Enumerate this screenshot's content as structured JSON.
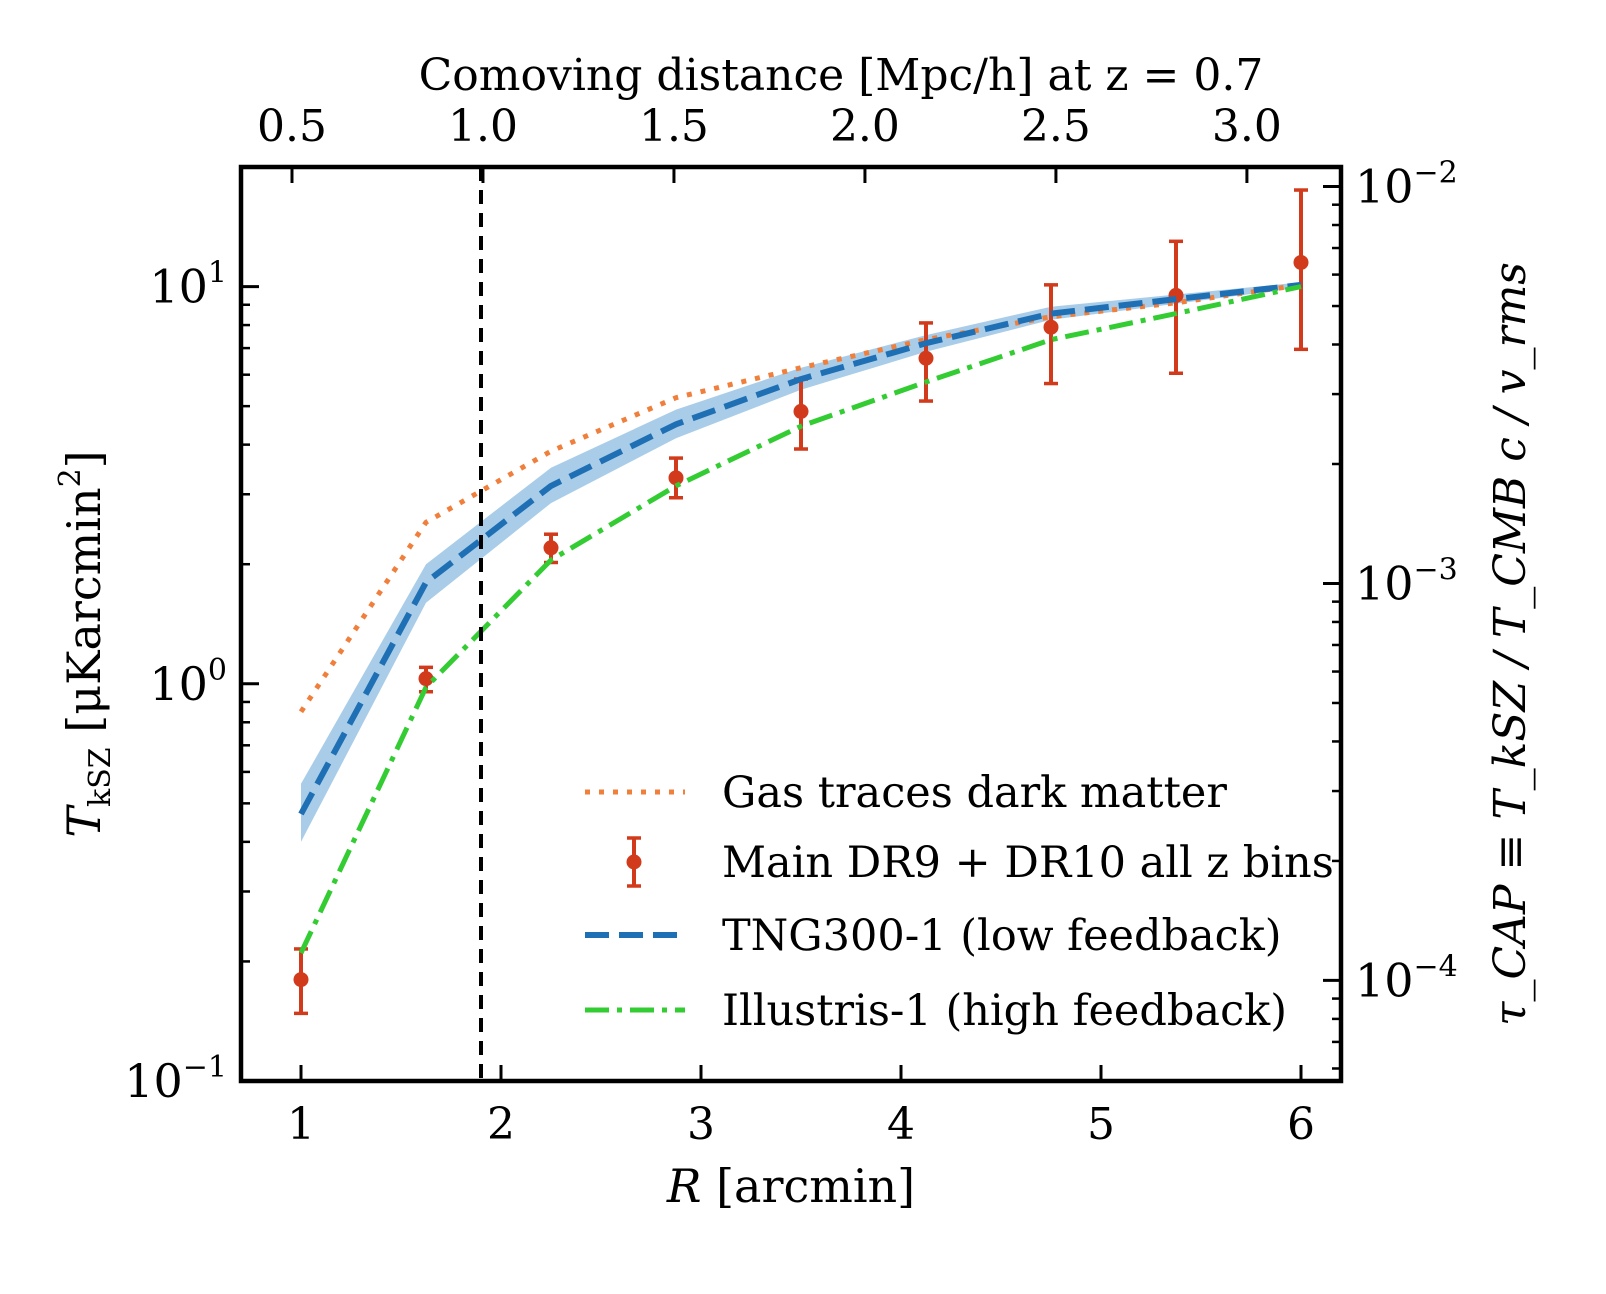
{
  "chart_data": {
    "type": "line",
    "xlabel_var": "R",
    "xlabel_unit": "[arcmin]",
    "ylabel_var": "T",
    "ylabel_sub": "kSZ",
    "ylabel_unit": "[μKarcmin",
    "ylabel_unit_sup": "2",
    "ylabel_unit_close": "]",
    "y2label": "τ_CAP ≡ T_kSZ / T_CMB c / v_rms",
    "top_xlabel": "Comoving distance [Mpc/h] at z = 0.7",
    "x_ticks": [
      "1",
      "2",
      "3",
      "4",
      "5",
      "6"
    ],
    "x_tick_values": [
      1,
      2,
      3,
      4,
      5,
      6
    ],
    "top_ticks": [
      "0.5",
      "1.0",
      "1.5",
      "2.0",
      "2.5",
      "3.0"
    ],
    "top_tick_values_mpc": [
      0.5,
      1.0,
      1.5,
      2.0,
      2.5,
      3.0
    ],
    "top_axis_mpc_per_arcmin": 0.5236,
    "y_ticks": [
      {
        "base": "10",
        "exp": "1",
        "value": 10
      },
      {
        "base": "10",
        "exp": "0",
        "value": 1
      },
      {
        "base": "10",
        "exp": "−1",
        "value": 0.1
      }
    ],
    "y2_ticks": [
      {
        "base": "10",
        "exp": "−2",
        "value": 0.01
      },
      {
        "base": "10",
        "exp": "−3",
        "value": 0.001
      },
      {
        "base": "10",
        "exp": "−4",
        "value": 0.0001
      }
    ],
    "xlim": [
      0.7,
      6.2
    ],
    "ylim": [
      0.1,
      20
    ],
    "y_scale": "log",
    "y2lim": [
      5.58e-05,
      0.0112
    ],
    "y2_scale": "log",
    "grid": false,
    "vline_x": 1.9,
    "legend_position": "lower-right",
    "series": [
      {
        "name": "Gas traces dark matter",
        "style": "dotted",
        "color": "#f07f3c",
        "x": [
          1.0,
          1.625,
          2.25,
          2.875,
          3.5,
          4.125,
          4.75,
          5.375,
          6.0
        ],
        "y": [
          0.85,
          2.55,
          3.85,
          5.25,
          6.25,
          7.35,
          8.4,
          9.1,
          10.1
        ]
      },
      {
        "name": "Main DR9 + DR10 all z bins",
        "style": "errorbar",
        "color": "#d23a1c",
        "x": [
          1.0,
          1.625,
          2.25,
          2.875,
          3.5,
          4.125,
          4.75,
          5.375,
          6.0
        ],
        "y": [
          0.18,
          1.03,
          2.2,
          3.3,
          4.85,
          6.6,
          7.9,
          9.5,
          11.5
        ],
        "yerr_low": [
          0.148,
          0.955,
          2.02,
          2.94,
          3.9,
          5.15,
          5.7,
          6.05,
          6.95
        ],
        "yerr_high": [
          0.215,
          1.1,
          2.38,
          3.7,
          5.85,
          8.1,
          10.1,
          13.0,
          17.5
        ]
      },
      {
        "name": "TNG300-1 (low  feedback)",
        "style": "dashed",
        "color": "#1f6fb4",
        "band_color": "#a9cde8",
        "x": [
          1.0,
          1.625,
          2.25,
          2.875,
          3.5,
          4.125,
          4.75,
          5.375,
          6.0
        ],
        "y": [
          0.47,
          1.8,
          3.15,
          4.5,
          5.85,
          7.2,
          8.55,
          9.3,
          10.1
        ],
        "y_low": [
          0.4,
          1.6,
          2.85,
          4.15,
          5.5,
          6.85,
          8.25,
          9.05,
          9.95
        ],
        "y_high": [
          0.56,
          2.0,
          3.5,
          4.9,
          6.25,
          7.55,
          8.9,
          9.55,
          10.25
        ]
      },
      {
        "name": "Illustris-1 (high  feedback)",
        "style": "dashdot",
        "color": "#33cc33",
        "x": [
          1.0,
          1.625,
          2.25,
          2.875,
          3.5,
          4.125,
          4.75,
          5.375,
          6.0
        ],
        "y": [
          0.21,
          0.98,
          2.05,
          3.15,
          4.45,
          5.75,
          7.35,
          8.55,
          10.0
        ]
      }
    ]
  }
}
